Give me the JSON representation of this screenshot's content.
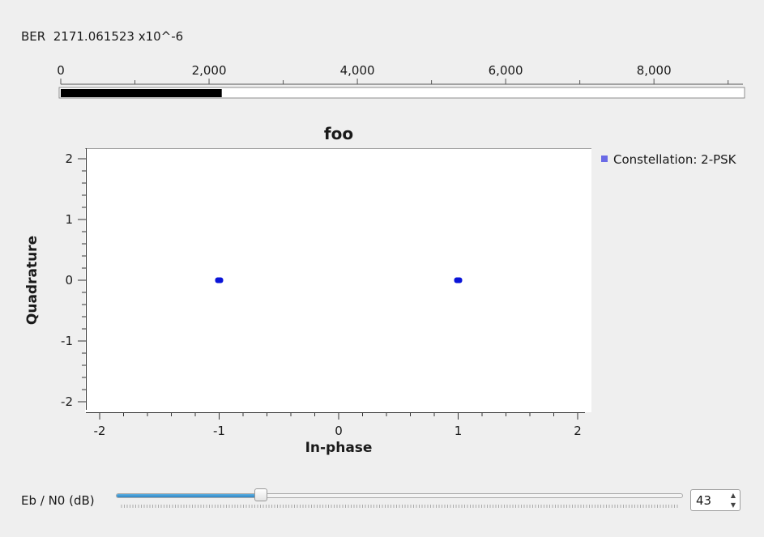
{
  "ber": {
    "label": "BER",
    "value_text": "2171.061523 x10^-6",
    "progress_value": 2171.061523,
    "scale_min": 0,
    "scale_max": 9200,
    "tick_labels": [
      "0",
      "2,000",
      "4,000",
      "6,000",
      "8,000"
    ],
    "tick_values": [
      0,
      2000,
      4000,
      6000,
      8000
    ],
    "minor_tick_values": [
      1000,
      3000,
      5000,
      7000,
      9000
    ]
  },
  "plot": {
    "legend": {
      "label": "Constellation: 2-PSK",
      "color": "#6a6ae6"
    },
    "point_color": "#0a14d8"
  },
  "chart_data": {
    "type": "scatter",
    "title": "foo",
    "xlabel": "In-phase",
    "ylabel": "Quadrature",
    "xlim": [
      -2,
      2
    ],
    "ylim": [
      -2,
      2
    ],
    "x_ticks": [
      "-2",
      "-1",
      "0",
      "1",
      "2"
    ],
    "y_ticks": [
      "2",
      "1",
      "0",
      "-1",
      "-2"
    ],
    "legend_position": "right",
    "series": [
      {
        "name": "Constellation: 2-PSK",
        "points": [
          {
            "x": -1,
            "y": 0
          },
          {
            "x": 1,
            "y": 0
          }
        ]
      }
    ]
  },
  "controls": {
    "eb_n0_label": "Eb / N0 (dB)",
    "eb_n0_value": "43",
    "slider_fraction": 0.255
  }
}
